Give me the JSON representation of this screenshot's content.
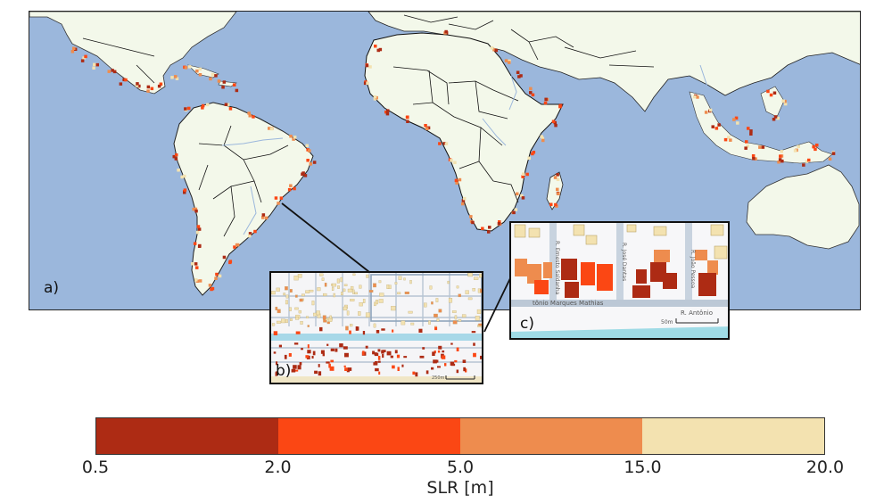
{
  "panels": {
    "a_label": "a)",
    "b_label": "b)",
    "c_label": "c)"
  },
  "inset_b": {
    "scale_label": "250m"
  },
  "inset_c": {
    "scale_label": "50m",
    "street_horizontal": "tônio Marques Mathias",
    "street_right": "R. Antônio",
    "street_v1": "R. Ernesto Saldanha",
    "street_v2": "R. José Dantas",
    "street_v3": "R. João Pessoa"
  },
  "colors": {
    "ocean": "#9bb7dc",
    "land": "#f3f8ea",
    "borders": "#111111",
    "rivers": "#9bb7dc"
  },
  "legend": {
    "label": "SLR [m]",
    "ticks": [
      "0.5",
      "2.0",
      "5.0",
      "15.0",
      "20.0"
    ],
    "bins": [
      {
        "from": 0.5,
        "to": 2.0,
        "color": "#ad2b14"
      },
      {
        "from": 2.0,
        "to": 5.0,
        "color": "#fb4714"
      },
      {
        "from": 5.0,
        "to": 15.0,
        "color": "#ee8c4e"
      },
      {
        "from": 15.0,
        "to": 20.0,
        "color": "#f3e2b0"
      }
    ]
  }
}
